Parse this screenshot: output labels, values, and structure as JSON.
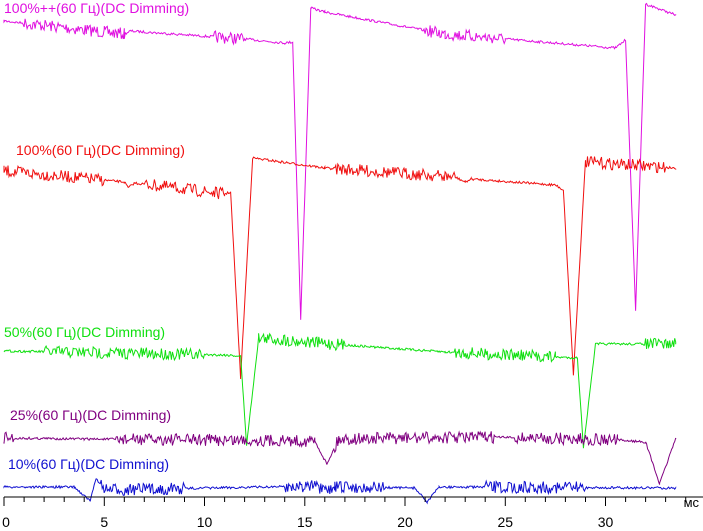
{
  "chart_data": {
    "type": "line",
    "xlabel": "мс",
    "ylabel": "",
    "xlim": [
      0,
      33.5
    ],
    "xticks": [
      0,
      5,
      10,
      15,
      20,
      25,
      30
    ],
    "grid": false,
    "legend": "labels above each trace",
    "series": [
      {
        "name": "100%++(60 Гц)(DC Dimming)",
        "color": "#e010e0",
        "points": [
          [
            0,
            21
          ],
          [
            5,
            32
          ],
          [
            6,
            34
          ],
          [
            6.3,
            31
          ],
          [
            12,
            39
          ],
          [
            14,
            43
          ],
          [
            14.4,
            42
          ],
          [
            14.8,
            320
          ],
          [
            15.3,
            8
          ],
          [
            16,
            12
          ],
          [
            22,
            34
          ],
          [
            25,
            39
          ],
          [
            30.5,
            48
          ],
          [
            31.0,
            40
          ],
          [
            31.5,
            310
          ],
          [
            32.0,
            4
          ],
          [
            33.5,
            15
          ]
        ],
        "noisy": [
          [
            1,
            6
          ],
          [
            10.5,
            12
          ],
          [
            21,
            25
          ]
        ]
      },
      {
        "name": "100%(60 Гц)(DC Dimming)",
        "color": "#f01010",
        "points": [
          [
            0,
            171
          ],
          [
            6,
            182
          ],
          [
            6.2,
            188
          ],
          [
            6.5,
            183
          ],
          [
            11.0,
            194
          ],
          [
            11.3,
            192
          ],
          [
            11.8,
            378
          ],
          [
            12.4,
            158
          ],
          [
            16,
            168
          ],
          [
            22.5,
            177
          ],
          [
            23.0,
            182
          ],
          [
            23.3,
            179
          ],
          [
            27.5,
            185
          ],
          [
            27.9,
            190
          ],
          [
            28.4,
            375
          ],
          [
            29.0,
            162
          ],
          [
            33.5,
            168
          ]
        ],
        "noisy": [
          [
            0,
            5
          ],
          [
            7,
            11
          ],
          [
            16.5,
            22.5
          ],
          [
            29,
            33
          ]
        ]
      },
      {
        "name": "50%(60 Гц)(DC Dimming)",
        "color": "#10e010",
        "points": [
          [
            0,
            351
          ],
          [
            11.0,
            355
          ],
          [
            11.8,
            356
          ],
          [
            12.1,
            445
          ],
          [
            12.7,
            338
          ],
          [
            17,
            345
          ],
          [
            22,
            352
          ],
          [
            27.5,
            357
          ],
          [
            28.6,
            358
          ],
          [
            28.9,
            447
          ],
          [
            29.5,
            344
          ],
          [
            33.5,
            344
          ]
        ],
        "noisy": [
          [
            2,
            6.5
          ],
          [
            6.5,
            10
          ],
          [
            12.7,
            17
          ],
          [
            22.5,
            27.5
          ],
          [
            32,
            33.5
          ]
        ]
      },
      {
        "name": "25%(60 Гц)(DC Dimming)",
        "color": "#800080",
        "points": [
          [
            0,
            438
          ],
          [
            4,
            439
          ],
          [
            11.5,
            440
          ],
          [
            15.5,
            441
          ],
          [
            16.1,
            464
          ],
          [
            16.7,
            439
          ],
          [
            24,
            437
          ],
          [
            30.6,
            440
          ],
          [
            32.0,
            442
          ],
          [
            32.7,
            484
          ],
          [
            33.5,
            438
          ]
        ],
        "noisy": [
          [
            0,
            0.6
          ],
          [
            5.5,
            15.5
          ],
          [
            16.5,
            24.5
          ],
          [
            25.5,
            30.6
          ]
        ]
      },
      {
        "name": "10%(60 Гц)(DC Dimming)",
        "color": "#1010d0",
        "points": [
          [
            0,
            487
          ],
          [
            3.5,
            487
          ],
          [
            4.3,
            501
          ],
          [
            4.6,
            478
          ],
          [
            5,
            490
          ],
          [
            15.5,
            486
          ],
          [
            16.0,
            492
          ],
          [
            16.5,
            487
          ],
          [
            20.5,
            488
          ],
          [
            21.1,
            502
          ],
          [
            21.7,
            487
          ],
          [
            33.5,
            488
          ]
        ],
        "noisy": [
          [
            4.8,
            9
          ],
          [
            14,
            19
          ],
          [
            24,
            29
          ]
        ]
      }
    ]
  }
}
